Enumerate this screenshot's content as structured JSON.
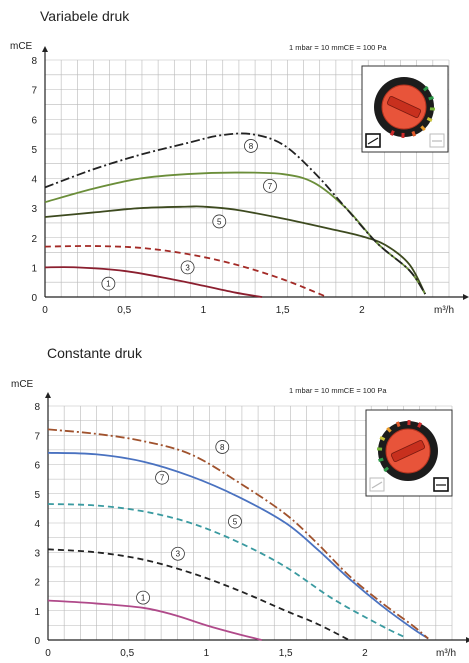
{
  "chart_data": [
    {
      "type": "line",
      "title": "Variabele druk",
      "ylabel": "mCE",
      "xlabel": "m³/h",
      "note": "1 mbar = 10 mmCE = 100 Pa",
      "xlim": [
        0,
        2.55
      ],
      "ylim": [
        0,
        8
      ],
      "xticks": [
        0,
        0.5,
        1,
        1.5,
        2
      ],
      "xtick_labels": [
        "0",
        "0,5",
        "1",
        "1,5",
        "2"
      ],
      "yticks": [
        0,
        1,
        2,
        3,
        4,
        5,
        6,
        7,
        8
      ],
      "ytick_labels": [
        "0",
        "1",
        "2",
        "3",
        "4",
        "5",
        "6",
        "7",
        "8"
      ],
      "grid": true,
      "selector_dial": {
        "positions": [
          "1",
          "3",
          "5",
          "7",
          "8"
        ],
        "mode_active": "variable"
      },
      "series": [
        {
          "name": "1",
          "color": "#8b1f2f",
          "style": "solid",
          "x": [
            0,
            0.2,
            0.5,
            0.8,
            1.0,
            1.2,
            1.37
          ],
          "y": [
            1.0,
            1.0,
            0.88,
            0.6,
            0.38,
            0.15,
            0.0
          ],
          "label_at": [
            0.4,
            0.45
          ]
        },
        {
          "name": "3",
          "color": "#a32a26",
          "style": "dashed",
          "x": [
            0,
            0.3,
            0.6,
            0.9,
            1.2,
            1.5,
            1.78
          ],
          "y": [
            1.7,
            1.72,
            1.66,
            1.45,
            1.1,
            0.6,
            0.0
          ],
          "label_at": [
            0.9,
            1.0
          ]
        },
        {
          "name": "5",
          "color": "#3d4a1f",
          "style": "solid",
          "x": [
            0,
            0.3,
            0.6,
            0.9,
            1.0,
            1.2,
            1.5,
            1.8,
            2.0,
            2.15,
            2.3,
            2.4
          ],
          "y": [
            2.7,
            2.85,
            3.0,
            3.05,
            3.05,
            2.95,
            2.65,
            2.3,
            2.05,
            1.75,
            1.1,
            0.1
          ],
          "label_at": [
            1.1,
            2.55
          ]
        },
        {
          "name": "7",
          "color": "#6b8e3a",
          "style": "solid",
          "x": [
            0,
            0.3,
            0.6,
            0.9,
            1.2,
            1.5,
            1.7,
            1.9,
            2.1,
            2.3,
            2.4
          ],
          "y": [
            3.2,
            3.65,
            4.0,
            4.15,
            4.2,
            4.15,
            3.85,
            3.0,
            1.8,
            0.9,
            0.1
          ],
          "label_at": [
            1.42,
            3.75
          ]
        },
        {
          "name": "8",
          "color": "#222222",
          "style": "dashdot",
          "x": [
            0,
            0.3,
            0.6,
            0.9,
            1.1,
            1.3,
            1.5,
            1.7,
            1.9,
            2.1,
            2.3,
            2.4
          ],
          "y": [
            3.7,
            4.3,
            4.8,
            5.2,
            5.45,
            5.5,
            5.15,
            4.2,
            3.0,
            1.8,
            0.9,
            0.1
          ],
          "label_at": [
            1.3,
            5.1
          ]
        }
      ]
    },
    {
      "type": "line",
      "title": "Constante druk",
      "ylabel": "mCE",
      "xlabel": "m³/h",
      "note": "1 mbar = 10 mmCE = 100 Pa",
      "xlim": [
        0,
        2.55
      ],
      "ylim": [
        0,
        8
      ],
      "xticks": [
        0,
        0.5,
        1,
        1.5,
        2
      ],
      "xtick_labels": [
        "0",
        "0,5",
        "1",
        "1,5",
        "2"
      ],
      "yticks": [
        0,
        1,
        2,
        3,
        4,
        5,
        6,
        7,
        8
      ],
      "ytick_labels": [
        "0",
        "1",
        "2",
        "3",
        "4",
        "5",
        "6",
        "7",
        "8"
      ],
      "grid": true,
      "selector_dial": {
        "positions": [
          "1",
          "3",
          "5",
          "7",
          "8"
        ],
        "mode_active": "constant"
      },
      "series": [
        {
          "name": "1",
          "color": "#b04a8a",
          "style": "solid",
          "x": [
            0,
            0.3,
            0.6,
            0.8,
            1.0,
            1.2,
            1.35
          ],
          "y": [
            1.35,
            1.25,
            1.1,
            0.85,
            0.5,
            0.2,
            0.0
          ],
          "label_at": [
            0.6,
            1.45
          ]
        },
        {
          "name": "3",
          "color": "#222222",
          "style": "dashed",
          "x": [
            0,
            0.3,
            0.6,
            0.9,
            1.2,
            1.5,
            1.7,
            1.9
          ],
          "y": [
            3.1,
            3.0,
            2.75,
            2.3,
            1.7,
            1.0,
            0.55,
            0.0
          ],
          "label_at": [
            0.82,
            2.95
          ]
        },
        {
          "name": "5",
          "color": "#3a9aa0",
          "style": "dashed",
          "x": [
            0,
            0.3,
            0.6,
            0.9,
            1.2,
            1.5,
            1.8,
            2.1,
            2.25
          ],
          "y": [
            4.65,
            4.6,
            4.4,
            4.0,
            3.35,
            2.5,
            1.4,
            0.5,
            0.1
          ],
          "label_at": [
            1.18,
            4.05
          ]
        },
        {
          "name": "7",
          "color": "#4a72c0",
          "style": "solid",
          "x": [
            0,
            0.3,
            0.6,
            0.9,
            1.2,
            1.5,
            1.7,
            1.9,
            2.1,
            2.3,
            2.4
          ],
          "y": [
            6.4,
            6.35,
            6.1,
            5.6,
            4.9,
            4.0,
            3.1,
            2.1,
            1.2,
            0.4,
            0.05
          ],
          "label_at": [
            0.72,
            5.55
          ]
        },
        {
          "name": "8",
          "color": "#a0522d",
          "style": "dashdot",
          "x": [
            0,
            0.3,
            0.6,
            0.9,
            1.2,
            1.5,
            1.7,
            1.9,
            2.1,
            2.3,
            2.4
          ],
          "y": [
            7.2,
            7.05,
            6.8,
            6.35,
            5.4,
            4.3,
            3.3,
            2.2,
            1.3,
            0.5,
            0.05
          ],
          "label_at": [
            1.1,
            6.6
          ]
        }
      ]
    }
  ]
}
